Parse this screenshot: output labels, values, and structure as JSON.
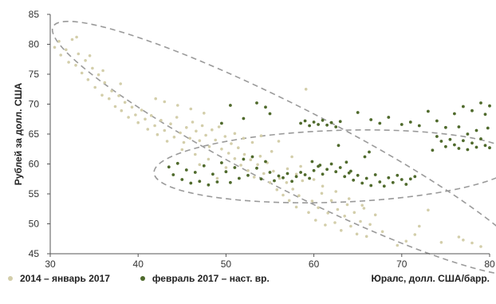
{
  "chart_data": {
    "type": "scatter",
    "title": "",
    "xlabel": "Юралс, долл. США/барр.",
    "ylabel": "Рублей за долл. США",
    "xlim": [
      30,
      80
    ],
    "ylim": [
      45,
      85
    ],
    "x_ticks": [
      "30",
      "40",
      "50",
      "60",
      "70",
      "80"
    ],
    "y_ticks": [
      "45",
      "50",
      "55",
      "60",
      "65",
      "70",
      "75",
      "80",
      "85"
    ],
    "grid": false,
    "legend_position": "bottom-left",
    "series": [
      {
        "name": "2014 – январь 2017",
        "color": "#d3ceaa",
        "points": [
          [
            30.5,
            79.5
          ],
          [
            31.0,
            80.5
          ],
          [
            31.2,
            78.2
          ],
          [
            31.8,
            79.1
          ],
          [
            32.1,
            77.0
          ],
          [
            32.5,
            80.8
          ],
          [
            32.9,
            76.5
          ],
          [
            33.2,
            78.4
          ],
          [
            33.6,
            75.2
          ],
          [
            34.0,
            77.3
          ],
          [
            34.3,
            74.1
          ],
          [
            34.8,
            76.0
          ],
          [
            35.1,
            72.8
          ],
          [
            35.5,
            74.9
          ],
          [
            35.9,
            71.5
          ],
          [
            36.2,
            73.6
          ],
          [
            36.7,
            70.9
          ],
          [
            37.0,
            72.2
          ],
          [
            37.4,
            69.6
          ],
          [
            37.8,
            71.4
          ],
          [
            38.1,
            68.9
          ],
          [
            38.5,
            70.3
          ],
          [
            38.9,
            67.8
          ],
          [
            39.3,
            69.5
          ],
          [
            39.7,
            68.2
          ],
          [
            40.0,
            66.9
          ],
          [
            40.4,
            69.0
          ],
          [
            40.8,
            67.5
          ],
          [
            41.1,
            65.8
          ],
          [
            41.5,
            68.1
          ],
          [
            41.9,
            66.4
          ],
          [
            42.2,
            64.9
          ],
          [
            42.6,
            67.3
          ],
          [
            43.0,
            65.6
          ],
          [
            43.3,
            63.8
          ],
          [
            43.7,
            66.7
          ],
          [
            44.1,
            64.5
          ],
          [
            44.4,
            67.8
          ],
          [
            44.8,
            65.2
          ],
          [
            45.2,
            63.6
          ],
          [
            45.5,
            66.1
          ],
          [
            45.9,
            64.3
          ],
          [
            46.2,
            67.0
          ],
          [
            46.6,
            65.5
          ],
          [
            47.0,
            63.9
          ],
          [
            47.3,
            66.4
          ],
          [
            47.7,
            64.8
          ],
          [
            48.1,
            62.9
          ],
          [
            48.4,
            65.7
          ],
          [
            48.8,
            64.0
          ],
          [
            49.2,
            66.2
          ],
          [
            49.5,
            62.5
          ],
          [
            49.9,
            64.6
          ],
          [
            50.3,
            61.8
          ],
          [
            50.6,
            63.4
          ],
          [
            51.0,
            60.9
          ],
          [
            51.4,
            62.7
          ],
          [
            51.7,
            59.8
          ],
          [
            52.1,
            61.6
          ],
          [
            52.5,
            58.9
          ],
          [
            52.8,
            60.7
          ],
          [
            53.2,
            57.8
          ],
          [
            53.6,
            59.9
          ],
          [
            53.9,
            61.3
          ],
          [
            54.3,
            58.4
          ],
          [
            54.7,
            60.2
          ],
          [
            55.0,
            56.9
          ],
          [
            55.4,
            58.8
          ],
          [
            55.8,
            55.7
          ],
          [
            56.1,
            57.6
          ],
          [
            56.5,
            54.8
          ],
          [
            56.9,
            56.9
          ],
          [
            57.2,
            53.9
          ],
          [
            57.6,
            55.8
          ],
          [
            58.0,
            52.8
          ],
          [
            58.3,
            54.7
          ],
          [
            58.7,
            57.2
          ],
          [
            59.1,
            72.5
          ],
          [
            59.4,
            51.9
          ],
          [
            59.8,
            53.8
          ],
          [
            60.2,
            50.6
          ],
          [
            60.5,
            52.7
          ],
          [
            60.9,
            55.1
          ],
          [
            61.3,
            49.8
          ],
          [
            61.6,
            51.8
          ],
          [
            62.0,
            53.9
          ],
          [
            62.4,
            50.2
          ],
          [
            62.7,
            52.4
          ],
          [
            63.1,
            48.9
          ],
          [
            63.5,
            51.3
          ],
          [
            63.8,
            53.2
          ],
          [
            64.2,
            49.6
          ],
          [
            64.6,
            51.9
          ],
          [
            64.9,
            48.3
          ],
          [
            65.3,
            50.4
          ],
          [
            65.7,
            52.6
          ],
          [
            66.0,
            47.9
          ],
          [
            66.4,
            49.9
          ],
          [
            67.0,
            51.5
          ],
          [
            67.8,
            48.7
          ],
          [
            56.0,
            63.8
          ],
          [
            55.2,
            62.1
          ],
          [
            57.5,
            61.2
          ],
          [
            58.5,
            59.6
          ],
          [
            54.0,
            64.7
          ],
          [
            53.0,
            63.6
          ],
          [
            52.0,
            64.3
          ],
          [
            51.0,
            65.1
          ],
          [
            47.5,
            68.5
          ],
          [
            46.0,
            69.2
          ],
          [
            44.5,
            69.8
          ],
          [
            43.0,
            70.4
          ],
          [
            42.0,
            70.9
          ],
          [
            38.0,
            73.4
          ],
          [
            36.0,
            75.6
          ],
          [
            34.5,
            78.1
          ],
          [
            33.0,
            81.2
          ],
          [
            77.0,
            47.3
          ],
          [
            78.0,
            46.8
          ],
          [
            79.0,
            46.2
          ],
          [
            76.5,
            47.8
          ],
          [
            73.0,
            52.3
          ],
          [
            72.0,
            49.6
          ],
          [
            70.5,
            47.1
          ],
          [
            69.5,
            46.4
          ],
          [
            71.5,
            48.2
          ],
          [
            74.5,
            46.9
          ],
          [
            48.0,
            60.8
          ],
          [
            46.5,
            61.6
          ],
          [
            45.0,
            62.4
          ],
          [
            50.0,
            59.4
          ],
          [
            49.0,
            57.6
          ],
          [
            47.0,
            59.9
          ],
          [
            61.0,
            56.3
          ],
          [
            62.5,
            55.4
          ],
          [
            64.0,
            54.2
          ],
          [
            65.5,
            53.1
          ],
          [
            60.0,
            57.4
          ],
          [
            58.0,
            58.3
          ],
          [
            57.0,
            59.2
          ]
        ]
      },
      {
        "name": "февраль 2017 – наст. вр.",
        "color": "#4f6a2c",
        "points": [
          [
            43.5,
            59.5
          ],
          [
            44.0,
            58.2
          ],
          [
            44.5,
            60.1
          ],
          [
            45.0,
            57.4
          ],
          [
            45.5,
            59.0
          ],
          [
            46.0,
            56.8
          ],
          [
            46.5,
            58.6
          ],
          [
            47.0,
            57.1
          ],
          [
            47.5,
            59.7
          ],
          [
            48.0,
            56.5
          ],
          [
            48.5,
            58.3
          ],
          [
            49.0,
            57.0
          ],
          [
            49.5,
            60.2
          ],
          [
            50.0,
            58.7
          ],
          [
            50.5,
            56.9
          ],
          [
            51.0,
            59.4
          ],
          [
            51.5,
            57.6
          ],
          [
            52.0,
            60.8
          ],
          [
            52.5,
            58.1
          ],
          [
            53.0,
            61.2
          ],
          [
            53.5,
            59.3
          ],
          [
            54.0,
            57.5
          ],
          [
            54.5,
            60.4
          ],
          [
            55.0,
            58.6
          ],
          [
            55.5,
            57.2
          ],
          [
            56.0,
            58.0
          ],
          [
            56.5,
            57.7
          ],
          [
            57.0,
            58.4
          ],
          [
            57.5,
            57.1
          ],
          [
            58.0,
            57.9
          ],
          [
            58.5,
            58.6
          ],
          [
            59.0,
            58.2
          ],
          [
            59.5,
            57.6
          ],
          [
            60.0,
            58.9
          ],
          [
            60.5,
            59.6
          ],
          [
            61.0,
            58.3
          ],
          [
            61.5,
            59.1
          ],
          [
            62.0,
            60.0
          ],
          [
            62.5,
            58.7
          ],
          [
            63.0,
            59.4
          ],
          [
            63.5,
            57.9
          ],
          [
            64.0,
            58.5
          ],
          [
            64.5,
            57.3
          ],
          [
            65.0,
            58.1
          ],
          [
            65.5,
            56.8
          ],
          [
            66.0,
            57.6
          ],
          [
            66.5,
            56.4
          ],
          [
            67.0,
            58.2
          ],
          [
            67.5,
            57.0
          ],
          [
            68.0,
            56.3
          ],
          [
            68.5,
            57.7
          ],
          [
            69.0,
            56.9
          ],
          [
            69.5,
            58.1
          ],
          [
            70.0,
            57.4
          ],
          [
            70.5,
            56.6
          ],
          [
            71.0,
            57.5
          ],
          [
            58.5,
            66.8
          ],
          [
            59.0,
            67.2
          ],
          [
            59.5,
            66.4
          ],
          [
            60.0,
            67.0
          ],
          [
            60.5,
            66.6
          ],
          [
            61.0,
            67.3
          ],
          [
            61.5,
            66.5
          ],
          [
            62.0,
            66.9
          ],
          [
            62.5,
            66.2
          ],
          [
            63.0,
            67.1
          ],
          [
            54.5,
            69.5
          ],
          [
            55.0,
            68.4
          ],
          [
            53.5,
            70.2
          ],
          [
            52.0,
            67.6
          ],
          [
            49.5,
            66.8
          ],
          [
            50.5,
            69.8
          ],
          [
            65.0,
            68.6
          ],
          [
            66.5,
            67.4
          ],
          [
            67.5,
            66.8
          ],
          [
            68.5,
            67.8
          ],
          [
            70.0,
            66.6
          ],
          [
            71.0,
            67.0
          ],
          [
            72.0,
            66.4
          ],
          [
            73.0,
            68.8
          ],
          [
            74.0,
            67.2
          ],
          [
            75.0,
            66.1
          ],
          [
            76.0,
            68.4
          ],
          [
            77.0,
            69.6
          ],
          [
            78.0,
            68.9
          ],
          [
            79.0,
            70.2
          ],
          [
            79.5,
            68.3
          ],
          [
            80.0,
            69.7
          ],
          [
            74.5,
            63.8
          ],
          [
            75.0,
            62.9
          ],
          [
            75.5,
            64.1
          ],
          [
            76.0,
            63.2
          ],
          [
            76.5,
            62.6
          ],
          [
            77.0,
            63.9
          ],
          [
            77.5,
            62.4
          ],
          [
            78.0,
            63.5
          ],
          [
            78.5,
            62.8
          ],
          [
            79.0,
            64.2
          ],
          [
            79.5,
            63.1
          ],
          [
            80.0,
            62.7
          ],
          [
            73.5,
            62.3
          ],
          [
            74.0,
            64.6
          ],
          [
            77.5,
            65.0
          ],
          [
            78.5,
            65.6
          ],
          [
            76.5,
            66.2
          ],
          [
            79.8,
            66.0
          ],
          [
            65.8,
            61.2
          ],
          [
            66.3,
            62.0
          ],
          [
            62.8,
            63.1
          ],
          [
            64.2,
            58.8
          ],
          [
            63.7,
            60.3
          ],
          [
            71.5,
            57.9
          ],
          [
            59.8,
            60.4
          ],
          [
            60.7,
            59.8
          ]
        ]
      }
    ],
    "ellipses": [
      {
        "series": "2014 – январь 2017",
        "cx": 57.5,
        "cy": 62.6,
        "rx": 30.5,
        "ry": 6.8,
        "angle_deg": 27
      },
      {
        "series": "февраль 2017 – наст. вр.",
        "cx": 62.5,
        "cy": 59.6,
        "rx": 20.7,
        "ry": 6.0,
        "angle_deg": -2
      }
    ]
  }
}
